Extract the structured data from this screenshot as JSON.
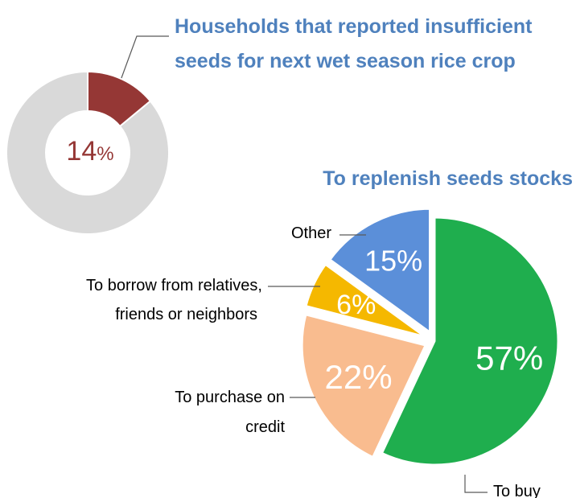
{
  "chart_data": [
    {
      "type": "pie",
      "style": "donut",
      "title_lines": [
        "Households that reported insufficient",
        "seeds for next wet season rice crop"
      ],
      "value": 14,
      "center_label": "14",
      "center_unit": "%",
      "colors": {
        "highlight": "#953735",
        "remainder": "#d9d9d9",
        "center_text": "#953735"
      }
    },
    {
      "type": "pie",
      "title": "To replenish seeds stocks",
      "slices": [
        {
          "label_lines": [
            "To buy"
          ],
          "value": 57,
          "value_label": "57%",
          "color": "#1fae4e"
        },
        {
          "label_lines": [
            "To purchase on",
            "credit"
          ],
          "value": 22,
          "value_label": "22%",
          "color": "#f9bc8f"
        },
        {
          "label_lines": [
            "To borrow from relatives,",
            "friends or neighbors"
          ],
          "value": 6,
          "value_label": "6%",
          "color": "#f5b800"
        },
        {
          "label_lines": [
            "Other"
          ],
          "value": 15,
          "value_label": "15%",
          "color": "#5b8fd9"
        }
      ]
    }
  ]
}
